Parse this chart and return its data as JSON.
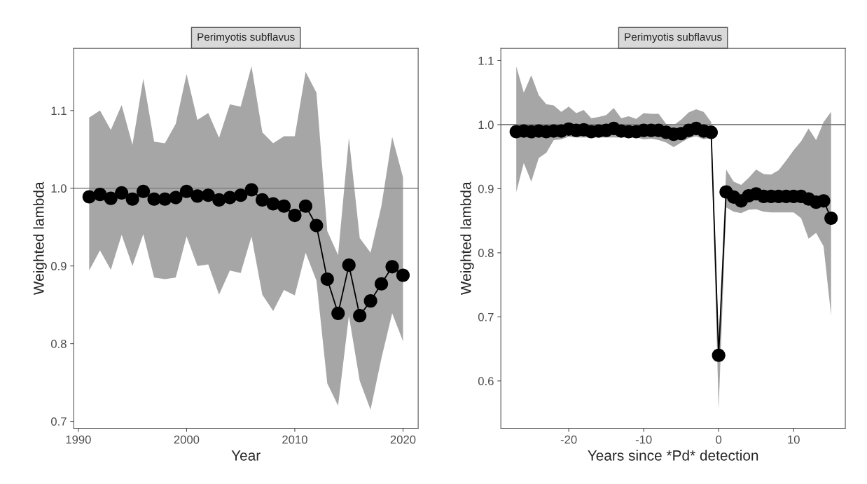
{
  "chart_data": [
    {
      "type": "line",
      "title": "Perimyotis subflavus",
      "xlabel": "Year",
      "ylabel": "Weighted lambda",
      "x": [
        1991,
        1992,
        1993,
        1994,
        1995,
        1996,
        1997,
        1998,
        1999,
        2000,
        2001,
        2002,
        2003,
        2004,
        2005,
        2006,
        2007,
        2008,
        2009,
        2010,
        2011,
        2012,
        2013,
        2014,
        2015,
        2016,
        2017,
        2018,
        2019,
        2020
      ],
      "series": [
        {
          "color": "#000000",
          "values": [
            0.989,
            0.992,
            0.987,
            0.994,
            0.986,
            0.996,
            0.986,
            0.986,
            0.988,
            0.996,
            0.99,
            0.991,
            0.985,
            0.988,
            0.991,
            0.998,
            0.985,
            0.98,
            0.977,
            0.965,
            0.977,
            0.952,
            0.883,
            0.839,
            0.901,
            0.836,
            0.855,
            0.877,
            0.899,
            0.888
          ],
          "upper": [
            1.091,
            1.1,
            1.075,
            1.107,
            1.056,
            1.141,
            1.06,
            1.058,
            1.083,
            1.147,
            1.088,
            1.097,
            1.065,
            1.108,
            1.105,
            1.157,
            1.072,
            1.058,
            1.067,
            1.067,
            1.15,
            1.123,
            0.945,
            0.914,
            1.065,
            0.936,
            0.917,
            0.977,
            1.066,
            1.014
          ],
          "lower": [
            0.894,
            0.92,
            0.895,
            0.94,
            0.9,
            0.941,
            0.885,
            0.883,
            0.885,
            0.938,
            0.9,
            0.902,
            0.863,
            0.894,
            0.891,
            0.938,
            0.863,
            0.842,
            0.869,
            0.862,
            0.917,
            0.881,
            0.749,
            0.72,
            0.836,
            0.752,
            0.715,
            0.781,
            0.839,
            0.803
          ]
        }
      ],
      "ref_lines": [
        {
          "axis": "y",
          "value": 1.0,
          "color": "#808080"
        }
      ],
      "xlim": [
        1989.57,
        2021.4
      ],
      "ylim": [
        0.691,
        1.18
      ],
      "xticks": [
        1990,
        2000,
        2010,
        2020
      ],
      "yticks": [
        0.7,
        0.8,
        0.9,
        {
          "value": 1.0,
          "label": "1.0"
        },
        1.1
      ],
      "marker": "circle",
      "line_style": "solid",
      "grid": false
    },
    {
      "type": "line",
      "title": "Perimyotis subflavus",
      "xlabel": "Years since *Pd* detection",
      "ylabel": "Weighted lambda",
      "x": [
        -27,
        -26,
        -25,
        -24,
        -23,
        -22,
        -21,
        -20,
        -19,
        -18,
        -17,
        -16,
        -15,
        -14,
        -13,
        -12,
        -11,
        -10,
        -9,
        -8,
        -7,
        -6,
        -5,
        -4,
        -3,
        -2,
        -1,
        0,
        1,
        2,
        3,
        4,
        5,
        6,
        7,
        8,
        9,
        10,
        11,
        12,
        13,
        14,
        15
      ],
      "series": [
        {
          "color": "#000000",
          "values": [
            0.989,
            0.99,
            0.989,
            0.99,
            0.989,
            0.99,
            0.99,
            0.993,
            0.991,
            0.992,
            0.989,
            0.99,
            0.991,
            0.994,
            0.99,
            0.989,
            0.989,
            0.991,
            0.991,
            0.991,
            0.988,
            0.985,
            0.986,
            0.991,
            0.994,
            0.99,
            0.988,
            0.64,
            0.895,
            0.887,
            0.881,
            0.889,
            0.892,
            0.888,
            0.888,
            0.888,
            0.888,
            0.888,
            0.888,
            0.884,
            0.879,
            0.881,
            0.854
          ],
          "upper": [
            1.091,
            1.05,
            1.077,
            1.046,
            1.032,
            1.03,
            1.02,
            1.028,
            1.018,
            1.023,
            1.01,
            1.012,
            1.015,
            1.026,
            1.01,
            1.013,
            1.009,
            1.018,
            1.017,
            1.017,
            1.001,
            0.999,
            1.008,
            1.019,
            1.024,
            1.02,
            1.004,
            0.66,
            0.93,
            0.911,
            0.906,
            0.917,
            0.93,
            0.923,
            0.922,
            0.929,
            0.944,
            0.96,
            0.974,
            0.994,
            0.976,
            1.004,
            1.02
          ],
          "lower": [
            0.895,
            0.94,
            0.911,
            0.948,
            0.956,
            0.976,
            0.977,
            0.981,
            0.98,
            0.98,
            0.98,
            0.98,
            0.98,
            0.98,
            0.98,
            0.98,
            0.98,
            0.977,
            0.978,
            0.976,
            0.972,
            0.965,
            0.972,
            0.979,
            0.982,
            0.977,
            0.98,
            0.556,
            0.871,
            0.864,
            0.862,
            0.867,
            0.868,
            0.864,
            0.863,
            0.863,
            0.863,
            0.863,
            0.854,
            0.822,
            0.831,
            0.81,
            0.702
          ]
        }
      ],
      "ref_lines": [
        {
          "axis": "y",
          "value": 1.0,
          "color": "#808080"
        }
      ],
      "xlim": [
        -29.06,
        16.9
      ],
      "ylim": [
        0.526,
        1.119
      ],
      "xticks": [
        -20,
        -10,
        0,
        10
      ],
      "yticks": [
        0.6,
        0.7,
        0.8,
        0.9,
        {
          "value": 1.0,
          "label": "1.0"
        },
        1.1
      ],
      "marker": "circle",
      "line_style": "solid",
      "grid": false
    }
  ]
}
